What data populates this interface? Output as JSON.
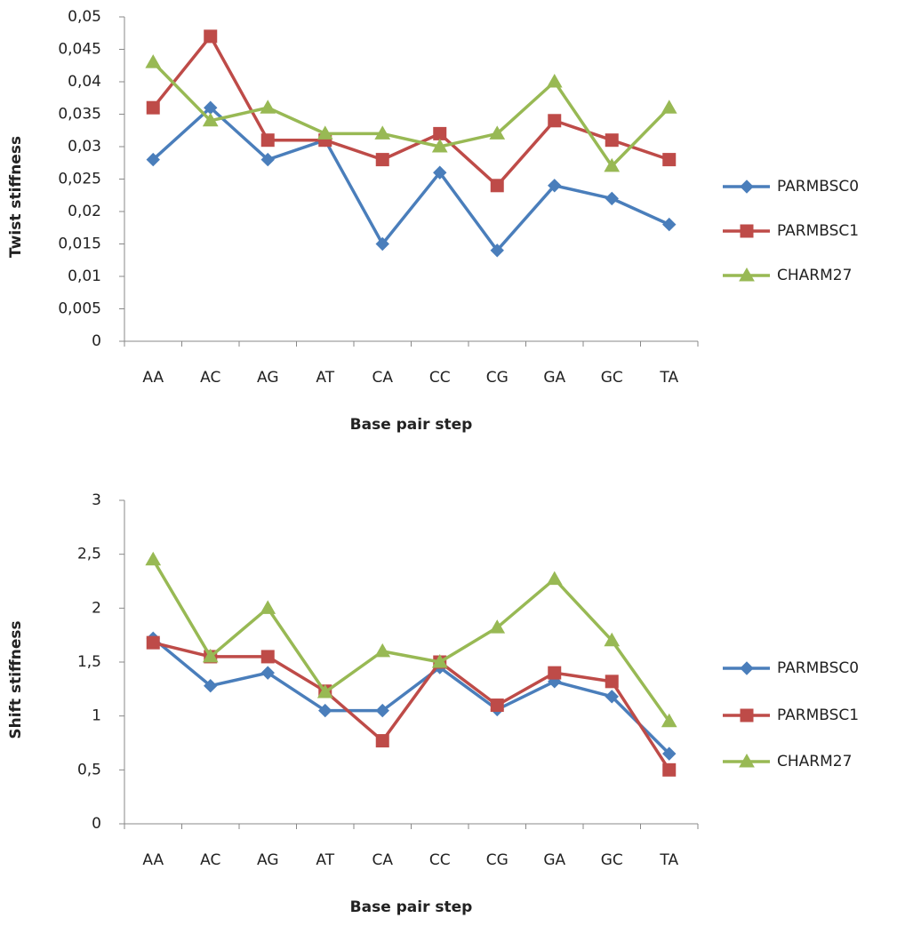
{
  "chart_data": [
    {
      "type": "line",
      "y_label": "Twist stiffness",
      "x_label": "Base pair step",
      "categories": [
        "AA",
        "AC",
        "AG",
        "AT",
        "CA",
        "CC",
        "CG",
        "GA",
        "GC",
        "TA"
      ],
      "ylim": [
        0,
        0.05
      ],
      "yticks": [
        0,
        {
          "value": 0.005,
          "label": "0,005"
        },
        {
          "value": 0.01,
          "label": "0,01"
        },
        {
          "value": 0.015,
          "label": "0,015"
        },
        {
          "value": 0.02,
          "label": "0,02"
        },
        {
          "value": 0.025,
          "label": "0,025"
        },
        {
          "value": 0.03,
          "label": "0,03"
        },
        {
          "value": 0.035,
          "label": "0,035"
        },
        {
          "value": 0.04,
          "label": "0,04"
        },
        {
          "value": 0.045,
          "label": "0,045"
        },
        {
          "value": 0.05,
          "label": "0,05"
        }
      ],
      "grid": false,
      "legend": "right",
      "series": [
        {
          "name": "PARMBSC0",
          "color": "#4a7ebb",
          "marker": "diamond",
          "values": [
            0.028,
            0.036,
            0.028,
            0.031,
            0.015,
            0.026,
            0.014,
            0.024,
            0.022,
            0.018
          ]
        },
        {
          "name": "PARMBSC1",
          "color": "#be4b48",
          "marker": "square",
          "values": [
            0.036,
            0.047,
            0.031,
            0.031,
            0.028,
            0.032,
            0.024,
            0.034,
            0.031,
            0.028
          ]
        },
        {
          "name": "CHARM27",
          "color": "#98b954",
          "marker": "triangle",
          "values": [
            0.043,
            0.034,
            0.036,
            0.032,
            0.032,
            0.03,
            0.032,
            0.04,
            0.027,
            0.036
          ]
        }
      ]
    },
    {
      "type": "line",
      "y_label": "Shift stiffness",
      "x_label": "Base pair step",
      "categories": [
        "AA",
        "AC",
        "AG",
        "AT",
        "CA",
        "CC",
        "CG",
        "GA",
        "GC",
        "TA"
      ],
      "ylim": [
        0,
        3
      ],
      "yticks": [
        0,
        {
          "value": 0.5,
          "label": "0,5"
        },
        1,
        {
          "value": 1.5,
          "label": "1,5"
        },
        2,
        {
          "value": 2.5,
          "label": "2,5"
        },
        3
      ],
      "grid": false,
      "legend": "right",
      "series": [
        {
          "name": "PARMBSC0",
          "color": "#4a7ebb",
          "marker": "diamond",
          "values": [
            1.72,
            1.28,
            1.4,
            1.05,
            1.05,
            1.45,
            1.06,
            1.32,
            1.18,
            0.65
          ]
        },
        {
          "name": "PARMBSC1",
          "color": "#be4b48",
          "marker": "square",
          "values": [
            1.68,
            1.55,
            1.55,
            1.23,
            0.77,
            1.5,
            1.1,
            1.4,
            1.32,
            0.5
          ]
        },
        {
          "name": "CHARM27",
          "color": "#98b954",
          "marker": "triangle",
          "values": [
            2.45,
            1.55,
            2.0,
            1.22,
            1.6,
            1.5,
            1.82,
            2.27,
            1.7,
            0.95
          ]
        }
      ]
    }
  ]
}
